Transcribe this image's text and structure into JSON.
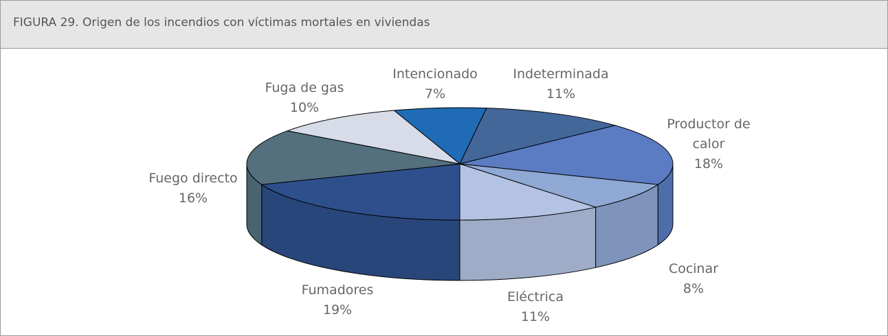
{
  "chart_data": {
    "type": "pie3d",
    "title": "FIGURA 29. Origen de los incendios con víctimas mortales en viviendas",
    "categories": [
      "Intencionado",
      "Indeterminada",
      "Productor de calor",
      "Cocinar",
      "Eléctrica",
      "Fumadores",
      "Fuego directo",
      "Fuga de gas"
    ],
    "values": [
      7,
      11,
      18,
      8,
      11,
      19,
      16,
      10
    ],
    "value_labels": [
      "7%",
      "11%",
      "18%",
      "8%",
      "11%",
      "19%",
      "16%",
      "10%"
    ],
    "colors": [
      "#1f6bb5",
      "#44679a",
      "#5b7cc2",
      "#8fa8d4",
      "#b4c3e3",
      "#2f4f8c",
      "#54707f",
      "#d8dce8"
    ]
  }
}
